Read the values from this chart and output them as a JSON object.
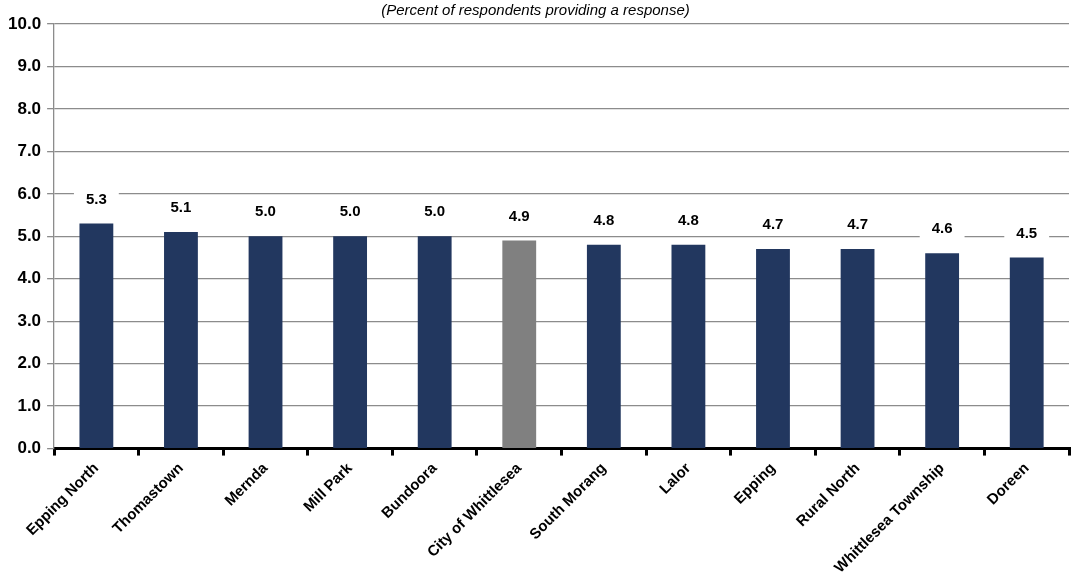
{
  "chart_data": {
    "type": "bar",
    "subtitle": "(Percent of respondents providing a response)",
    "categories": [
      "Epping North",
      "Thomastown",
      "Mernda",
      "Mill Park",
      "Bundoora",
      "City of Whittlesea",
      "South Morang",
      "Lalor",
      "Epping",
      "Rural North",
      "Whittlesea Township",
      "Doreen"
    ],
    "values": [
      5.3,
      5.1,
      5.0,
      5.0,
      5.0,
      4.9,
      4.8,
      4.8,
      4.7,
      4.7,
      4.6,
      4.5
    ],
    "colors": [
      "#22375f",
      "#22375f",
      "#22375f",
      "#22375f",
      "#22375f",
      "#808080",
      "#22375f",
      "#22375f",
      "#22375f",
      "#22375f",
      "#22375f",
      "#22375f"
    ],
    "value_labels": [
      "5.3",
      "5.1",
      "5.0",
      "5.0",
      "5.0",
      "4.9",
      "4.8",
      "4.8",
      "4.7",
      "4.7",
      "4.6",
      "4.5"
    ],
    "ylim": [
      0,
      10
    ],
    "yticks": [
      {
        "value": 0,
        "label": "0.0"
      },
      {
        "value": 1,
        "label": "1.0"
      },
      {
        "value": 2,
        "label": "2.0"
      },
      {
        "value": 3,
        "label": "3.0"
      },
      {
        "value": 4,
        "label": "4.0"
      },
      {
        "value": 5,
        "label": "5.0"
      },
      {
        "value": 6,
        "label": "6.0"
      },
      {
        "value": 7,
        "label": "7.0"
      },
      {
        "value": 8,
        "label": "8.0"
      },
      {
        "value": 9,
        "label": "9.0"
      },
      {
        "value": 10,
        "label": "10.0"
      }
    ],
    "grid": "y"
  }
}
